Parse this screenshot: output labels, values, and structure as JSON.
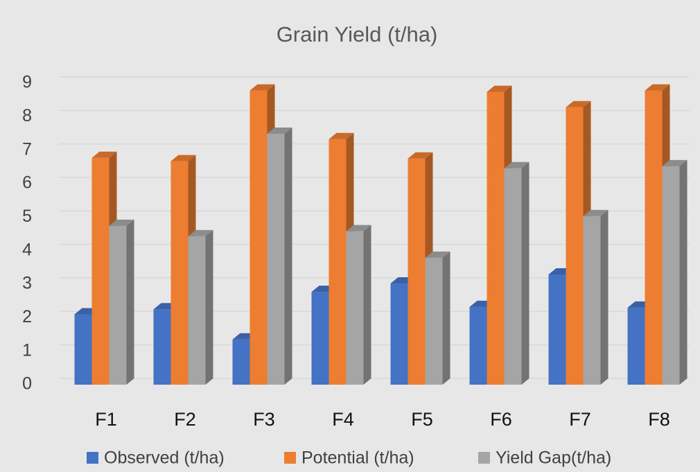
{
  "chart_data": {
    "type": "bar3d",
    "title": "Grain Yield (t/ha)",
    "categories": [
      "F1",
      "F2",
      "F3",
      "F4",
      "F5",
      "F6",
      "F7",
      "F8"
    ],
    "series": [
      {
        "name": "Observed (t/ha)",
        "color": "#4472c4",
        "values": [
          2.1,
          2.25,
          1.35,
          2.77,
          3.02,
          2.32,
          3.29,
          2.3
        ]
      },
      {
        "name": "Potential (t/ha)",
        "color": "#ed7d31",
        "values": [
          6.77,
          6.67,
          8.78,
          7.33,
          6.75,
          8.74,
          8.28,
          8.78
        ]
      },
      {
        "name": "Yield Gap(t/ha)",
        "color": "#a5a5a5",
        "values": [
          4.74,
          4.43,
          7.49,
          4.58,
          3.79,
          6.46,
          5.03,
          6.52
        ]
      }
    ],
    "ylim": [
      0,
      9
    ],
    "yticks": [
      0,
      1,
      2,
      3,
      4,
      5,
      6,
      7,
      8,
      9
    ],
    "grid": true,
    "legend": "bottom"
  }
}
